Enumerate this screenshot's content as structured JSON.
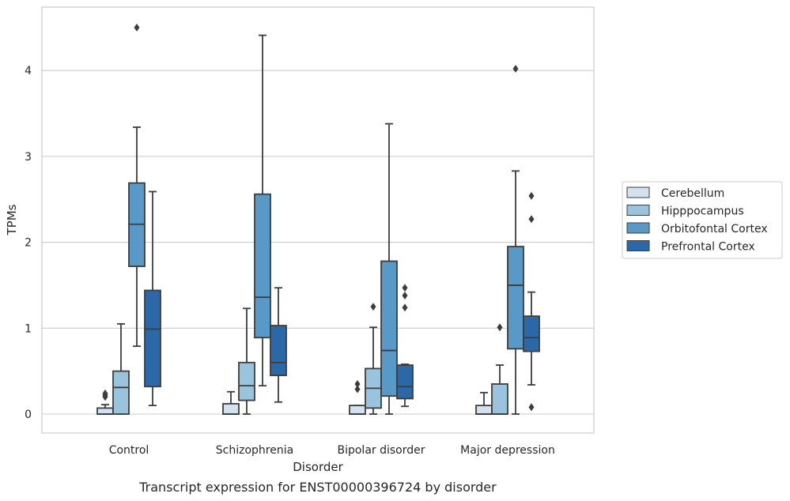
{
  "chart_data": {
    "type": "box",
    "title": "",
    "caption": "Transcript expression for ENST00000396724 by disorder",
    "xlabel": "Disorder",
    "ylabel": "TPMs",
    "ylim": [
      -0.22,
      4.74
    ],
    "yticks": [
      0,
      1,
      2,
      3,
      4
    ],
    "grid": "horizontal",
    "legend_position": "right",
    "categories": [
      "Control",
      "Schizophrenia",
      "Bipolar disorder",
      "Major depression"
    ],
    "series": [
      {
        "name": "Cerebellum",
        "color": "#d3e1f0",
        "boxes": [
          {
            "whislo": 0.0,
            "q1": 0.0,
            "med": 0.0,
            "q3": 0.07,
            "whishi": 0.11,
            "fliers": [
              0.2,
              0.22,
              0.24
            ]
          },
          {
            "whislo": 0.0,
            "q1": 0.0,
            "med": 0.0,
            "q3": 0.12,
            "whishi": 0.26,
            "fliers": []
          },
          {
            "whislo": 0.0,
            "q1": 0.0,
            "med": 0.0,
            "q3": 0.1,
            "whishi": 0.1,
            "fliers": [
              0.29,
              0.35
            ]
          },
          {
            "whislo": 0.0,
            "q1": 0.0,
            "med": 0.0,
            "q3": 0.1,
            "whishi": 0.25,
            "fliers": []
          }
        ]
      },
      {
        "name": "Hipppocampus",
        "color": "#9ac3de",
        "boxes": [
          {
            "whislo": 0.0,
            "q1": 0.0,
            "med": 0.31,
            "q3": 0.5,
            "whishi": 1.05,
            "fliers": []
          },
          {
            "whislo": 0.0,
            "q1": 0.16,
            "med": 0.33,
            "q3": 0.6,
            "whishi": 1.23,
            "fliers": []
          },
          {
            "whislo": 0.0,
            "q1": 0.07,
            "med": 0.3,
            "q3": 0.53,
            "whishi": 1.01,
            "fliers": [
              1.25
            ]
          },
          {
            "whislo": 0.0,
            "q1": 0.0,
            "med": 0.0,
            "q3": 0.35,
            "whishi": 0.57,
            "fliers": [
              1.01
            ]
          }
        ]
      },
      {
        "name": "Orbitofontal Cortex",
        "color": "#5899c8",
        "boxes": [
          {
            "whislo": 0.79,
            "q1": 1.72,
            "med": 2.21,
            "q3": 2.69,
            "whishi": 3.34,
            "fliers": [
              4.5
            ]
          },
          {
            "whislo": 0.33,
            "q1": 0.89,
            "med": 1.36,
            "q3": 2.56,
            "whishi": 4.41,
            "fliers": []
          },
          {
            "whislo": 0.0,
            "q1": 0.21,
            "med": 0.74,
            "q3": 1.78,
            "whishi": 3.38,
            "fliers": []
          },
          {
            "whislo": 0.0,
            "q1": 0.76,
            "med": 1.5,
            "q3": 1.95,
            "whishi": 2.83,
            "fliers": [
              4.02
            ]
          }
        ]
      },
      {
        "name": "Prefrontal Cortex",
        "color": "#2a68a8",
        "boxes": [
          {
            "whislo": 0.1,
            "q1": 0.32,
            "med": 0.99,
            "q3": 1.44,
            "whishi": 2.59,
            "fliers": []
          },
          {
            "whislo": 0.14,
            "q1": 0.45,
            "med": 0.6,
            "q3": 1.03,
            "whishi": 1.47,
            "fliers": []
          },
          {
            "whislo": 0.09,
            "q1": 0.18,
            "med": 0.32,
            "q3": 0.57,
            "whishi": 0.58,
            "fliers": [
              1.24,
              1.38,
              1.47
            ]
          },
          {
            "whislo": 0.34,
            "q1": 0.73,
            "med": 0.89,
            "q3": 1.14,
            "whishi": 1.42,
            "fliers": [
              0.08,
              2.27,
              2.54
            ]
          }
        ]
      }
    ]
  }
}
